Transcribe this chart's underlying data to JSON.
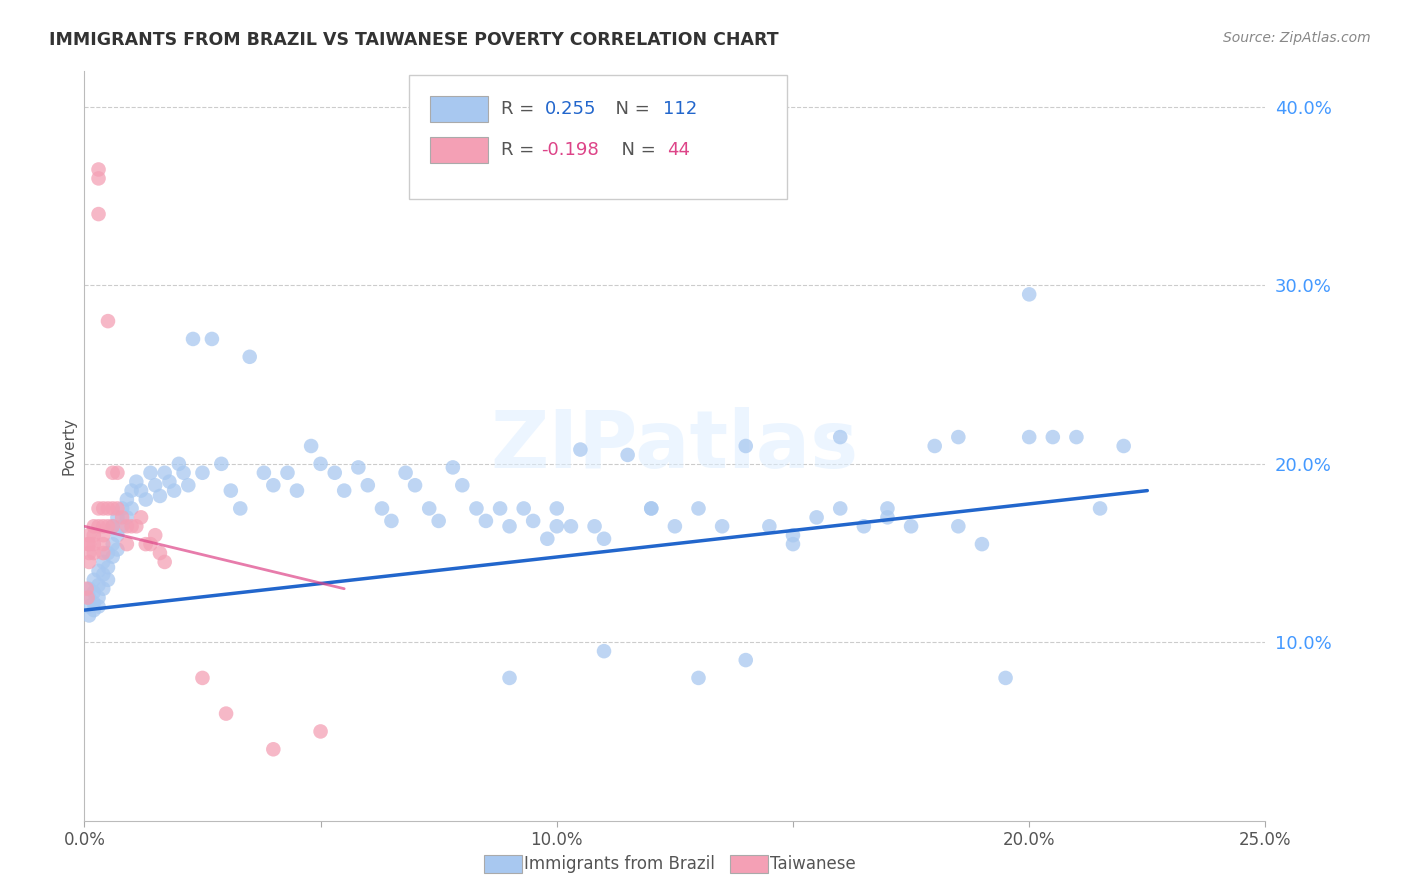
{
  "title": "IMMIGRANTS FROM BRAZIL VS TAIWANESE POVERTY CORRELATION CHART",
  "source": "Source: ZipAtlas.com",
  "ylabel": "Poverty",
  "watermark": "ZIPatlas",
  "xlim": [
    0.0,
    0.25
  ],
  "ylim": [
    0.0,
    0.42
  ],
  "yticks_right": [
    0.1,
    0.2,
    0.3,
    0.4
  ],
  "ytick_labels_right": [
    "10.0%",
    "20.0%",
    "30.0%",
    "40.0%"
  ],
  "xtick_vals": [
    0.0,
    0.05,
    0.1,
    0.15,
    0.2,
    0.25
  ],
  "xtick_labels": [
    "0.0%",
    "",
    "10.0%",
    "",
    "20.0%",
    "25.0%"
  ],
  "brazil_color": "#a8c8f0",
  "taiwan_color": "#f4a0b5",
  "brazil_line_color": "#2266cc",
  "taiwan_line_color": "#dd4488",
  "background_color": "#ffffff",
  "grid_color": "#cccccc",
  "title_color": "#333333",
  "source_color": "#888888",
  "right_axis_color": "#4499ff",
  "brazil_R": 0.255,
  "brazil_N": 112,
  "taiwan_R": -0.198,
  "taiwan_N": 44,
  "brazil_x": [
    0.001,
    0.001,
    0.001,
    0.001,
    0.002,
    0.002,
    0.002,
    0.002,
    0.003,
    0.003,
    0.003,
    0.003,
    0.004,
    0.004,
    0.004,
    0.005,
    0.005,
    0.005,
    0.006,
    0.006,
    0.006,
    0.007,
    0.007,
    0.007,
    0.008,
    0.008,
    0.009,
    0.009,
    0.01,
    0.01,
    0.011,
    0.012,
    0.013,
    0.014,
    0.015,
    0.016,
    0.017,
    0.018,
    0.019,
    0.02,
    0.021,
    0.022,
    0.023,
    0.025,
    0.027,
    0.029,
    0.031,
    0.033,
    0.035,
    0.038,
    0.04,
    0.043,
    0.045,
    0.048,
    0.05,
    0.053,
    0.055,
    0.058,
    0.06,
    0.063,
    0.065,
    0.068,
    0.07,
    0.073,
    0.075,
    0.078,
    0.08,
    0.083,
    0.085,
    0.088,
    0.09,
    0.093,
    0.095,
    0.098,
    0.1,
    0.103,
    0.105,
    0.108,
    0.11,
    0.115,
    0.12,
    0.125,
    0.13,
    0.135,
    0.14,
    0.145,
    0.15,
    0.155,
    0.16,
    0.165,
    0.17,
    0.175,
    0.18,
    0.185,
    0.19,
    0.195,
    0.2,
    0.205,
    0.21,
    0.215,
    0.22,
    0.2,
    0.185,
    0.17,
    0.16,
    0.15,
    0.14,
    0.13,
    0.12,
    0.11,
    0.1,
    0.09
  ],
  "brazil_y": [
    0.13,
    0.125,
    0.12,
    0.115,
    0.135,
    0.128,
    0.122,
    0.118,
    0.14,
    0.132,
    0.125,
    0.12,
    0.145,
    0.138,
    0.13,
    0.15,
    0.142,
    0.135,
    0.165,
    0.155,
    0.148,
    0.17,
    0.16,
    0.152,
    0.175,
    0.165,
    0.18,
    0.17,
    0.185,
    0.175,
    0.19,
    0.185,
    0.18,
    0.195,
    0.188,
    0.182,
    0.195,
    0.19,
    0.185,
    0.2,
    0.195,
    0.188,
    0.27,
    0.195,
    0.27,
    0.2,
    0.185,
    0.175,
    0.26,
    0.195,
    0.188,
    0.195,
    0.185,
    0.21,
    0.2,
    0.195,
    0.185,
    0.198,
    0.188,
    0.175,
    0.168,
    0.195,
    0.188,
    0.175,
    0.168,
    0.198,
    0.188,
    0.175,
    0.168,
    0.175,
    0.165,
    0.175,
    0.168,
    0.158,
    0.175,
    0.165,
    0.208,
    0.165,
    0.158,
    0.205,
    0.175,
    0.165,
    0.175,
    0.165,
    0.21,
    0.165,
    0.155,
    0.17,
    0.175,
    0.165,
    0.175,
    0.165,
    0.21,
    0.165,
    0.155,
    0.08,
    0.295,
    0.215,
    0.215,
    0.175,
    0.21,
    0.215,
    0.215,
    0.17,
    0.215,
    0.16,
    0.09,
    0.08,
    0.175,
    0.095,
    0.165,
    0.08
  ],
  "taiwan_x": [
    0.0005,
    0.0007,
    0.0008,
    0.001,
    0.001,
    0.001,
    0.001,
    0.002,
    0.002,
    0.002,
    0.002,
    0.003,
    0.003,
    0.003,
    0.003,
    0.003,
    0.004,
    0.004,
    0.004,
    0.004,
    0.004,
    0.005,
    0.005,
    0.005,
    0.006,
    0.006,
    0.006,
    0.007,
    0.007,
    0.008,
    0.009,
    0.009,
    0.01,
    0.011,
    0.012,
    0.013,
    0.014,
    0.015,
    0.016,
    0.017,
    0.025,
    0.03,
    0.04,
    0.05
  ],
  "taiwan_y": [
    0.13,
    0.125,
    0.155,
    0.16,
    0.155,
    0.15,
    0.145,
    0.165,
    0.16,
    0.155,
    0.15,
    0.34,
    0.365,
    0.36,
    0.175,
    0.165,
    0.175,
    0.165,
    0.16,
    0.155,
    0.15,
    0.28,
    0.175,
    0.165,
    0.195,
    0.175,
    0.165,
    0.195,
    0.175,
    0.17,
    0.165,
    0.155,
    0.165,
    0.165,
    0.17,
    0.155,
    0.155,
    0.16,
    0.15,
    0.145,
    0.08,
    0.06,
    0.04,
    0.05
  ],
  "brazil_trend_x": [
    0.0,
    0.225
  ],
  "brazil_trend_y": [
    0.118,
    0.185
  ],
  "taiwan_trend_x": [
    0.0,
    0.055
  ],
  "taiwan_trend_y": [
    0.165,
    0.13
  ]
}
